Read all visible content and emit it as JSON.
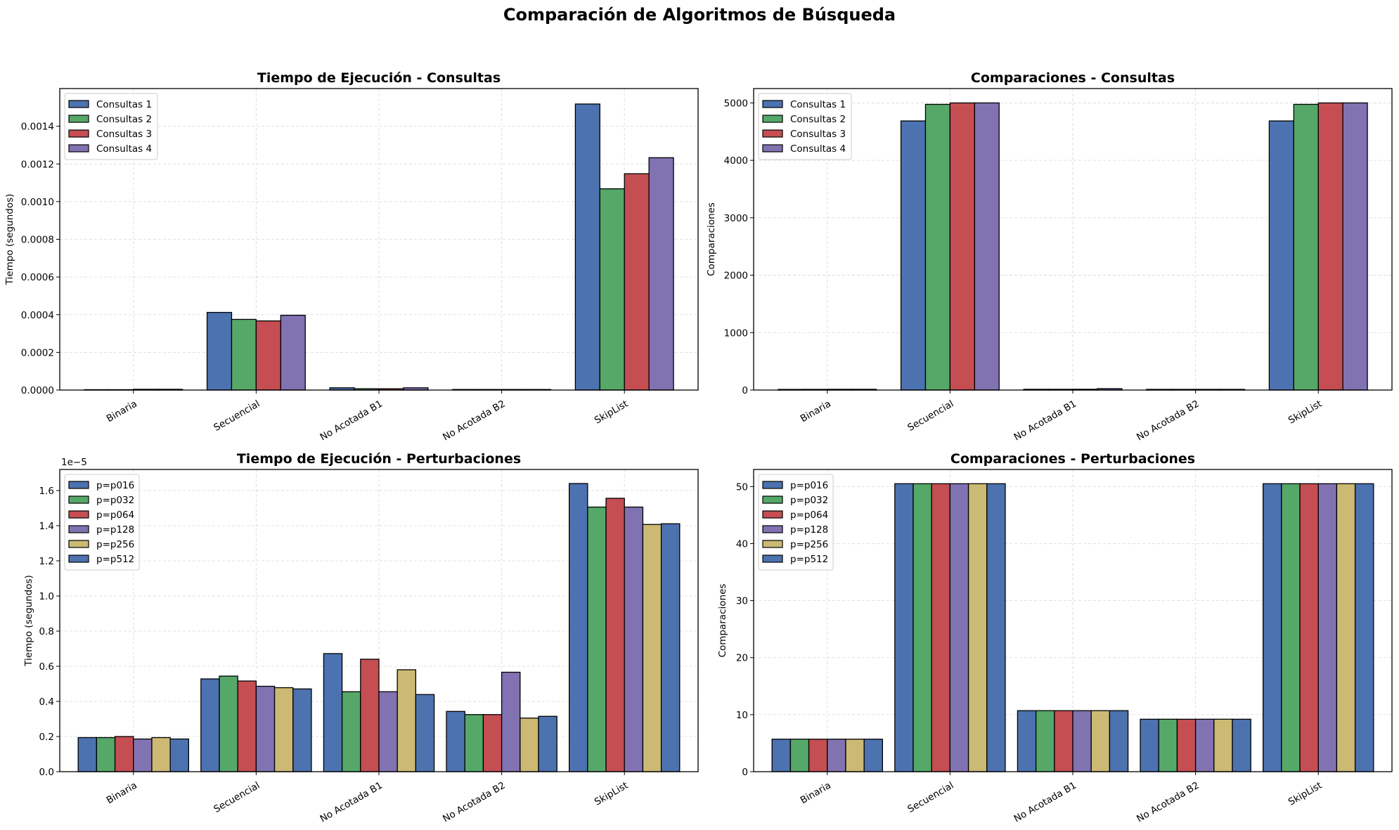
{
  "figure": {
    "suptitle": "Comparación de Algoritmos de Búsqueda"
  },
  "palette": {
    "blue": "#4C72B0",
    "green": "#55A868",
    "red": "#C44E52",
    "purple": "#8172B2",
    "yellow": "#CCB974"
  },
  "chart_data": [
    {
      "id": "tiempo-consultas",
      "type": "bar",
      "title": "Tiempo de Ejecución - Consultas",
      "xlabel": "",
      "ylabel": "Tiempo (segundos)",
      "ylim": [
        0,
        0.0016
      ],
      "yticks": [
        0.0,
        0.0002,
        0.0004,
        0.0006,
        0.0008,
        0.001,
        0.0012,
        0.0014
      ],
      "ytick_labels": [
        "0.0000",
        "0.0002",
        "0.0004",
        "0.0006",
        "0.0008",
        "0.0010",
        "0.0012",
        "0.0014"
      ],
      "offset_label": "",
      "grid": true,
      "legend_position": "top-left",
      "categories": [
        "Binaria",
        "Secuencial",
        "No Acotada B1",
        "No Acotada B2",
        "SkipList"
      ],
      "series": [
        {
          "name": "Consultas 1",
          "color": "#4C72B0",
          "values": [
            2e-06,
            0.000412,
            1.2e-05,
            3e-06,
            0.001518
          ]
        },
        {
          "name": "Consultas 2",
          "color": "#55A868",
          "values": [
            2e-06,
            0.000375,
            7e-06,
            3e-06,
            0.001068
          ]
        },
        {
          "name": "Consultas 3",
          "color": "#C44E52",
          "values": [
            4e-06,
            0.000367,
            7e-06,
            3e-06,
            0.001148
          ]
        },
        {
          "name": "Consultas 4",
          "color": "#8172B2",
          "values": [
            4e-06,
            0.000397,
            1.2e-05,
            3e-06,
            0.001233
          ]
        }
      ]
    },
    {
      "id": "comparaciones-consultas",
      "type": "bar",
      "title": "Comparaciones - Consultas",
      "xlabel": "",
      "ylabel": "Comparaciones",
      "ylim": [
        0,
        5250
      ],
      "yticks": [
        0,
        1000,
        2000,
        3000,
        4000,
        5000
      ],
      "ytick_labels": [
        "0",
        "1000",
        "2000",
        "3000",
        "4000",
        "5000"
      ],
      "offset_label": "",
      "grid": true,
      "legend_position": "top-left",
      "categories": [
        "Binaria",
        "Secuencial",
        "No Acotada B1",
        "No Acotada B2",
        "SkipList"
      ],
      "series": [
        {
          "name": "Consultas 1",
          "color": "#4C72B0",
          "values": [
            11,
            4686,
            13,
            12,
            4686
          ]
        },
        {
          "name": "Consultas 2",
          "color": "#55A868",
          "values": [
            12,
            4975,
            13,
            12,
            4975
          ]
        },
        {
          "name": "Consultas 3",
          "color": "#C44E52",
          "values": [
            13,
            5000,
            14,
            12,
            5000
          ]
        },
        {
          "name": "Consultas 4",
          "color": "#8172B2",
          "values": [
            13,
            5000,
            25,
            12,
            5000
          ]
        }
      ]
    },
    {
      "id": "tiempo-perturbaciones",
      "type": "bar",
      "title": "Tiempo de Ejecución - Perturbaciones",
      "xlabel": "",
      "ylabel": "Tiempo (segundos)",
      "ylim": [
        0,
        1.72
      ],
      "yticks": [
        0.0,
        0.2,
        0.4,
        0.6,
        0.8,
        1.0,
        1.2,
        1.4,
        1.6
      ],
      "ytick_labels": [
        "0.0",
        "0.2",
        "0.4",
        "0.6",
        "0.8",
        "1.0",
        "1.2",
        "1.4",
        "1.6"
      ],
      "offset_label": "1e−5",
      "value_scale": "1e-5",
      "grid": true,
      "legend_position": "top-left",
      "categories": [
        "Binaria",
        "Secuencial",
        "No Acotada B1",
        "No Acotada B2",
        "SkipList"
      ],
      "series": [
        {
          "name": "p=p016",
          "color": "#4C72B0",
          "values": [
            0.194,
            0.528,
            0.672,
            0.343,
            1.64
          ]
        },
        {
          "name": "p=p032",
          "color": "#55A868",
          "values": [
            0.194,
            0.544,
            0.455,
            0.325,
            1.506
          ]
        },
        {
          "name": "p=p064",
          "color": "#C44E52",
          "values": [
            0.2,
            0.516,
            0.64,
            0.325,
            1.556
          ]
        },
        {
          "name": "p=p128",
          "color": "#8172B2",
          "values": [
            0.186,
            0.486,
            0.455,
            0.566,
            1.506
          ]
        },
        {
          "name": "p=p256",
          "color": "#CCB974",
          "values": [
            0.194,
            0.478,
            0.58,
            0.305,
            1.407
          ]
        },
        {
          "name": "p=p512",
          "color": "#4C72B0",
          "values": [
            0.186,
            0.471,
            0.439,
            0.315,
            1.411
          ]
        }
      ]
    },
    {
      "id": "comparaciones-perturbaciones",
      "type": "bar",
      "title": "Comparaciones - Perturbaciones",
      "xlabel": "",
      "ylabel": "Comparaciones",
      "ylim": [
        0,
        53
      ],
      "yticks": [
        0,
        10,
        20,
        30,
        40,
        50
      ],
      "ytick_labels": [
        "0",
        "10",
        "20",
        "30",
        "40",
        "50"
      ],
      "offset_label": "",
      "grid": true,
      "legend_position": "top-left",
      "categories": [
        "Binaria",
        "Secuencial",
        "No Acotada B1",
        "No Acotada B2",
        "SkipList"
      ],
      "series": [
        {
          "name": "p=p016",
          "color": "#4C72B0",
          "values": [
            5.7,
            50.5,
            10.7,
            9.2,
            50.5
          ]
        },
        {
          "name": "p=p032",
          "color": "#55A868",
          "values": [
            5.7,
            50.5,
            10.7,
            9.2,
            50.5
          ]
        },
        {
          "name": "p=p064",
          "color": "#C44E52",
          "values": [
            5.7,
            50.5,
            10.7,
            9.2,
            50.5
          ]
        },
        {
          "name": "p=p128",
          "color": "#8172B2",
          "values": [
            5.7,
            50.5,
            10.7,
            9.2,
            50.5
          ]
        },
        {
          "name": "p=p256",
          "color": "#CCB974",
          "values": [
            5.7,
            50.5,
            10.7,
            9.2,
            50.5
          ]
        },
        {
          "name": "p=p512",
          "color": "#4C72B0",
          "values": [
            5.7,
            50.5,
            10.7,
            9.2,
            50.5
          ]
        }
      ]
    }
  ]
}
